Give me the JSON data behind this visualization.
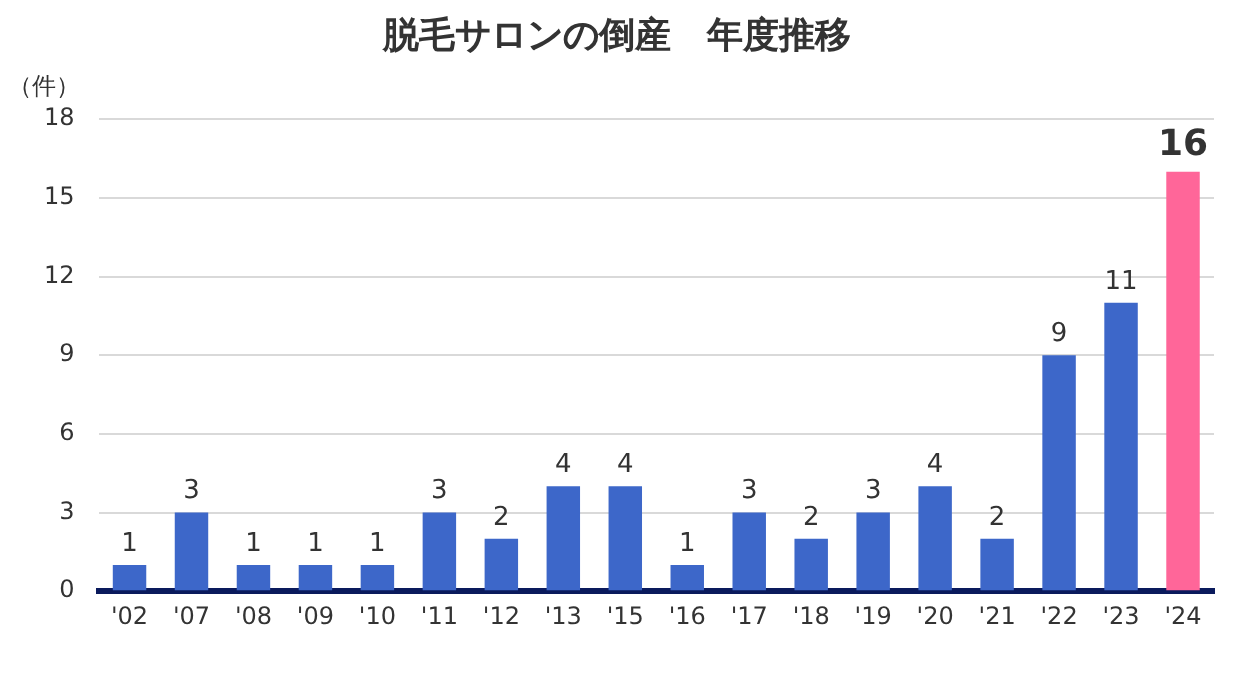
{
  "chart_data": {
    "type": "bar",
    "title": "脱毛サロンの倒産　年度推移",
    "ylabel": "（件）",
    "categories": [
      "'02",
      "'07",
      "'08",
      "'09",
      "'10",
      "'11",
      "'12",
      "'13",
      "'15",
      "'16",
      "'17",
      "'18",
      "'19",
      "'20",
      "'21",
      "'22",
      "'23",
      "'24"
    ],
    "values": [
      1,
      3,
      1,
      1,
      1,
      3,
      2,
      4,
      4,
      1,
      3,
      2,
      3,
      4,
      2,
      9,
      11,
      16
    ],
    "colors": [
      "#3d67c9",
      "#3d67c9",
      "#3d67c9",
      "#3d67c9",
      "#3d67c9",
      "#3d67c9",
      "#3d67c9",
      "#3d67c9",
      "#3d67c9",
      "#3d67c9",
      "#3d67c9",
      "#3d67c9",
      "#3d67c9",
      "#3d67c9",
      "#3d67c9",
      "#3d67c9",
      "#3d67c9",
      "#ff6699"
    ],
    "ylim": [
      0,
      18
    ],
    "yticks": [
      0,
      3,
      6,
      9,
      12,
      15,
      18
    ],
    "grid": "y",
    "data_labels": true,
    "legend": false
  }
}
